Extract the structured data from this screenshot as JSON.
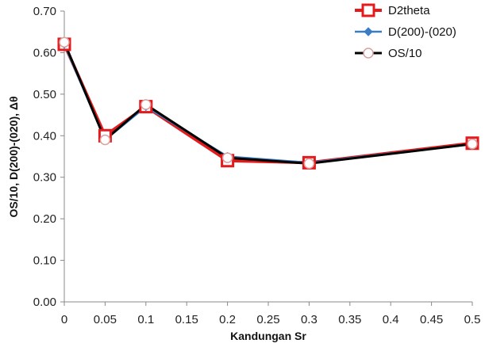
{
  "chart_data": {
    "type": "line",
    "title": "",
    "xlabel": "Kandungan Sr",
    "ylabel": "OS/10, D(200)-(020), Δθ",
    "xlim": [
      0,
      0.5
    ],
    "ylim": [
      0,
      0.7
    ],
    "x_ticks": [
      "0",
      "0.05",
      "0.1",
      "0.15",
      "0.2",
      "0.25",
      "0.3",
      "0.35",
      "0.4",
      "0.45",
      "0.5"
    ],
    "y_ticks": [
      "0.00",
      "0.10",
      "0.20",
      "0.30",
      "0.40",
      "0.50",
      "0.60",
      "0.70"
    ],
    "grid": false,
    "legend_position": "top-right",
    "x": [
      0,
      0.05,
      0.1,
      0.2,
      0.3,
      0.5
    ],
    "series": [
      {
        "name": "D2theta",
        "values": [
          0.62,
          0.4,
          0.47,
          0.34,
          0.335,
          0.382
        ],
        "color": "#e41a1c",
        "marker": "square"
      },
      {
        "name": "D(200)-(020)",
        "values": [
          0.62,
          0.39,
          0.47,
          0.35,
          0.335,
          0.38
        ],
        "color": "#3b7dc4",
        "marker": "diamond"
      },
      {
        "name": "OS/10",
        "values": [
          0.625,
          0.39,
          0.475,
          0.347,
          0.333,
          0.38
        ],
        "color": "#000000",
        "marker": "circle"
      }
    ]
  }
}
